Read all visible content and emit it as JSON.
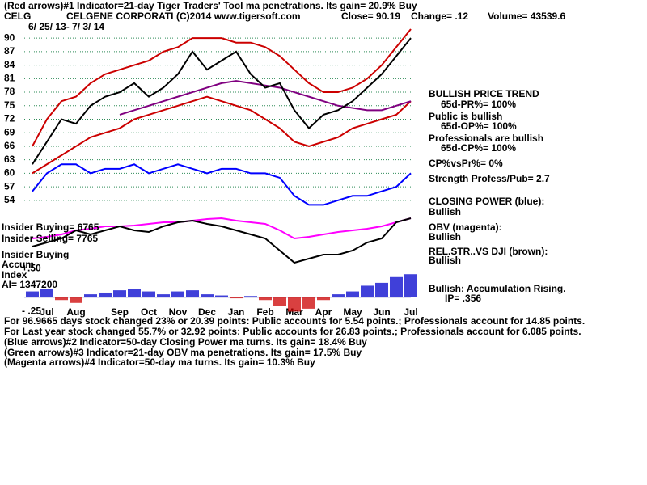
{
  "chart_data": [
    {
      "type": "line",
      "categories": [
        null,
        "Jul",
        null,
        "Aug",
        null,
        null,
        "Sep",
        null,
        "Oct",
        null,
        "Nov",
        null,
        "Dec",
        null,
        "Jan",
        null,
        "Feb",
        null,
        "Mar",
        null,
        "Apr",
        null,
        "May",
        null,
        "Jun",
        null,
        "Jul"
      ],
      "ylim": [
        52,
        92
      ],
      "yticks": [
        54,
        57,
        60,
        63,
        66,
        69,
        72,
        75,
        78,
        81,
        84,
        87,
        90
      ],
      "grid": true,
      "grid_color": "#2e8b57",
      "series": [
        {
          "color": "#cc0000",
          "values": [
            66,
            72,
            76,
            77,
            80,
            82,
            83,
            84,
            85,
            87,
            88,
            90,
            90,
            90,
            89,
            89,
            88,
            86,
            83,
            80,
            78,
            78,
            79,
            81,
            84,
            88,
            92
          ]
        },
        {
          "color": "#cc0000",
          "values": [
            60,
            62,
            64,
            66,
            68,
            69,
            70,
            72,
            73,
            74,
            75,
            76,
            77,
            76,
            75,
            74,
            72,
            70,
            67,
            66,
            67,
            68,
            70,
            71,
            72,
            73,
            76
          ]
        },
        {
          "color": "#800080",
          "values": [
            null,
            null,
            null,
            null,
            null,
            null,
            73,
            74,
            75,
            76,
            77,
            78,
            79,
            80,
            80.5,
            80,
            79.5,
            79,
            78,
            77,
            76,
            75,
            74.5,
            74,
            74,
            75,
            76
          ]
        },
        {
          "color": "#0000ff",
          "values": [
            56,
            60,
            62,
            62,
            60,
            61,
            61,
            62,
            60,
            61,
            62,
            61,
            60,
            61,
            61,
            60,
            60,
            59,
            55,
            53,
            53,
            54,
            55,
            55,
            56,
            57,
            60
          ]
        },
        {
          "color": "#000000",
          "values": [
            62,
            67,
            72,
            71,
            75,
            77,
            78,
            80,
            77,
            79,
            82,
            87,
            83,
            85,
            87,
            82,
            79,
            80,
            74,
            70,
            73,
            74,
            76,
            79,
            82,
            86,
            90
          ]
        }
      ]
    },
    {
      "type": "line",
      "ylim": [
        -20,
        60
      ],
      "series": [
        {
          "color": "#ff00ff",
          "values": [
            20,
            22,
            25,
            30,
            32,
            35,
            35,
            36,
            38,
            40,
            40,
            42,
            44,
            45,
            42,
            40,
            38,
            30,
            20,
            22,
            25,
            28,
            30,
            32,
            35,
            40,
            45
          ]
        },
        {
          "color": "#000000",
          "values": [
            10,
            15,
            20,
            30,
            25,
            30,
            35,
            30,
            28,
            35,
            40,
            42,
            38,
            35,
            30,
            25,
            20,
            5,
            -10,
            -5,
            0,
            0,
            5,
            15,
            20,
            40,
            45
          ]
        }
      ]
    },
    {
      "type": "bar",
      "ylim": [
        -0.3,
        0.6
      ],
      "yticks": [
        {
          "value": 0.5,
          "label": "+.50"
        },
        {
          "value": -0.25,
          "label": "- .25"
        }
      ],
      "colors": {
        "positive": "#0000cc",
        "negative": "#cc0000"
      },
      "values": [
        0.1,
        0.15,
        -0.05,
        -0.1,
        0.05,
        0.08,
        0.12,
        0.15,
        0.1,
        0.05,
        0.1,
        0.12,
        0.05,
        0.03,
        -0.02,
        0.02,
        -0.05,
        -0.15,
        -0.25,
        -0.2,
        -0.05,
        0.05,
        0.1,
        0.2,
        0.25,
        0.35,
        0.4
      ]
    }
  ],
  "header": [
    "(Red arrows)#1 Indicator=21-day Tiger Traders' Tool ma penetrations. Its gain= 20.9% Buy",
    "CELG",
    "CELGENE CORPORATI",
    "(C)2014 www.tigersoft.com",
    "Close=  90.19",
    "Change= .12",
    "Volume= 43539.6",
    "6/ 25/ 13- 7/ 3/ 14"
  ],
  "side": [
    "BULLISH PRICE TREND",
    "65d-PR%= 100%",
    "Public is bullish",
    "65d-OP%= 100%",
    "Professionals are bullish",
    "65d-CP%= 100%",
    "CP%vsPr%=  0%",
    "Strength Profess/Pub= 2.7",
    "CLOSING POWER (blue):",
    "Bullish",
    "OBV (magenta):",
    "Bullish",
    "REL.STR..VS DJI (brown):",
    "Bullish",
    "Bullish: Accumulation Rising.",
    "IP=  .356"
  ],
  "left": [
    "Insider Buying= 6765",
    "Insider Selling= 7765",
    "Insider Buying",
    "Accum",
    "Index",
    "AI= 1347200"
  ],
  "footer": [
    "For 96.9665 days stock changed  23% or  20.39 points:  Public accounts for  5.54 points.;  Professionals account for  14.85 points.",
    "For Last year stock changed  55.7% or  32.92 points:  Public accounts for  26.83 points.;  Professionals account for  6.085 points.",
    "(Blue arrows)#2 Indicator=50-day Closing Power ma turns. Its gain= 18.4% Buy",
    "(Green arrows)#3 Indicator=21-day OBV ma penetrations. Its gain= 17.5% Buy",
    "(Magenta arrows)#4 Indicator=50-day ma turns. Its gain= 10.3% Buy"
  ]
}
